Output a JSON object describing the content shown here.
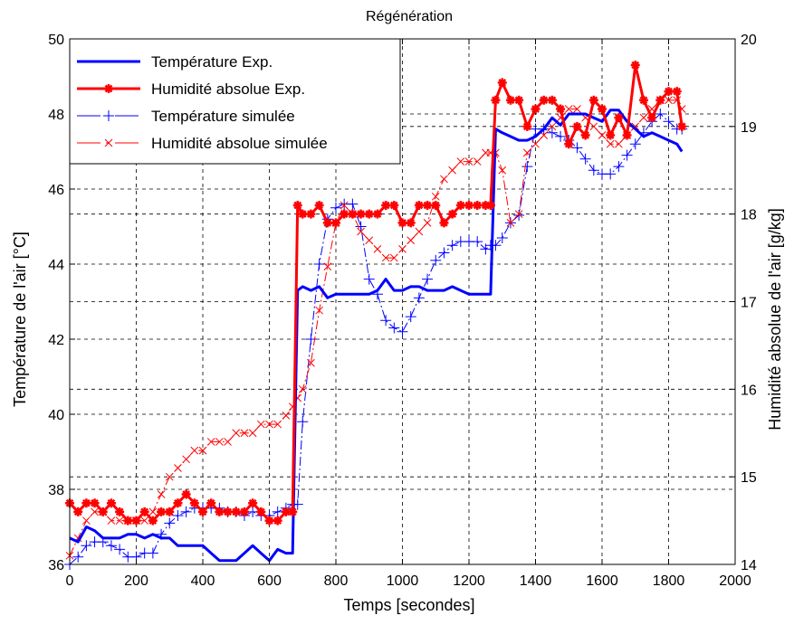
{
  "chart_data": {
    "type": "line",
    "title": "Régénération",
    "xlabel": "Temps [secondes]",
    "ylabel_left": "Température de l'air [°C]",
    "ylabel_right": "Humidité absolue de l'air [g/kg]",
    "xlim": [
      0,
      2000
    ],
    "ylim_left": [
      36,
      50
    ],
    "ylim_right": [
      14,
      20
    ],
    "x_ticks": [
      "0",
      "200",
      "400",
      "600",
      "800",
      "1000",
      "1200",
      "1400",
      "1600",
      "1800",
      "2000"
    ],
    "y_ticks_left": [
      "36",
      "38",
      "40",
      "42",
      "44",
      "46",
      "48",
      "50"
    ],
    "y_ticks_right": [
      "14",
      "15",
      "16",
      "17",
      "18",
      "19",
      "20"
    ],
    "grid": true,
    "legend_position": "top-left",
    "series": [
      {
        "name": "Température Exp.",
        "axis": "left",
        "color": "#0000ff",
        "style": "solid-thick",
        "marker": "none",
        "x": [
          0,
          25,
          50,
          75,
          100,
          125,
          150,
          175,
          200,
          225,
          250,
          275,
          300,
          325,
          350,
          375,
          400,
          425,
          450,
          475,
          500,
          525,
          550,
          575,
          600,
          625,
          650,
          670,
          685,
          700,
          725,
          750,
          775,
          800,
          825,
          850,
          875,
          900,
          925,
          950,
          975,
          1000,
          1025,
          1050,
          1075,
          1100,
          1125,
          1150,
          1175,
          1200,
          1225,
          1250,
          1265,
          1280,
          1300,
          1325,
          1350,
          1375,
          1400,
          1425,
          1450,
          1475,
          1500,
          1525,
          1550,
          1575,
          1600,
          1625,
          1650,
          1675,
          1700,
          1725,
          1750,
          1775,
          1800,
          1825,
          1840
        ],
        "y": [
          36.7,
          36.6,
          37.0,
          36.9,
          36.7,
          36.7,
          36.7,
          36.8,
          36.8,
          36.7,
          36.8,
          36.7,
          36.7,
          36.5,
          36.5,
          36.5,
          36.5,
          36.3,
          36.1,
          36.1,
          36.1,
          36.3,
          36.5,
          36.3,
          36.1,
          36.4,
          36.3,
          36.3,
          43.3,
          43.4,
          43.3,
          43.4,
          43.1,
          43.2,
          43.2,
          43.2,
          43.2,
          43.2,
          43.3,
          43.6,
          43.3,
          43.3,
          43.4,
          43.4,
          43.3,
          43.3,
          43.3,
          43.4,
          43.3,
          43.2,
          43.2,
          43.2,
          43.2,
          47.6,
          47.5,
          47.4,
          47.3,
          47.3,
          47.4,
          47.6,
          47.9,
          47.7,
          48.0,
          48.0,
          48.0,
          47.9,
          47.8,
          48.1,
          48.1,
          47.8,
          47.6,
          47.4,
          47.5,
          47.4,
          47.3,
          47.2,
          47.0
        ]
      },
      {
        "name": "Humidité absolue Exp.",
        "axis": "right",
        "color": "#ff0000",
        "style": "solid-thick",
        "marker": "star",
        "x": [
          0,
          25,
          50,
          75,
          100,
          125,
          150,
          175,
          200,
          225,
          250,
          275,
          300,
          325,
          350,
          375,
          400,
          425,
          450,
          475,
          500,
          525,
          550,
          575,
          600,
          625,
          650,
          670,
          685,
          700,
          725,
          750,
          775,
          800,
          825,
          850,
          875,
          900,
          925,
          950,
          975,
          1000,
          1025,
          1050,
          1075,
          1100,
          1125,
          1150,
          1175,
          1200,
          1225,
          1250,
          1265,
          1280,
          1300,
          1325,
          1350,
          1375,
          1400,
          1425,
          1450,
          1475,
          1500,
          1525,
          1550,
          1575,
          1600,
          1625,
          1650,
          1675,
          1700,
          1725,
          1750,
          1775,
          1800,
          1825,
          1840
        ],
        "y": [
          14.7,
          14.6,
          14.7,
          14.7,
          14.6,
          14.7,
          14.6,
          14.5,
          14.5,
          14.6,
          14.5,
          14.6,
          14.6,
          14.7,
          14.8,
          14.7,
          14.6,
          14.7,
          14.6,
          14.6,
          14.6,
          14.6,
          14.7,
          14.6,
          14.5,
          14.5,
          14.6,
          14.6,
          18.1,
          18.0,
          18.0,
          18.1,
          17.9,
          17.9,
          18.0,
          18.0,
          18.0,
          18.0,
          18.0,
          18.1,
          18.1,
          17.9,
          17.9,
          18.1,
          18.1,
          18.1,
          17.9,
          18.0,
          18.1,
          18.1,
          18.1,
          18.1,
          18.1,
          19.3,
          19.5,
          19.3,
          19.3,
          19.0,
          19.2,
          19.3,
          19.3,
          19.2,
          18.8,
          19.0,
          18.9,
          19.3,
          19.2,
          18.9,
          19.1,
          18.9,
          19.7,
          19.3,
          19.1,
          19.3,
          19.4,
          19.4,
          19.0
        ]
      },
      {
        "name": "Température simulée",
        "axis": "left",
        "color": "#0000ff",
        "style": "dash-dot-thin",
        "marker": "plus",
        "x": [
          0,
          25,
          50,
          75,
          100,
          125,
          150,
          175,
          200,
          225,
          250,
          275,
          300,
          325,
          350,
          375,
          400,
          425,
          450,
          475,
          500,
          525,
          550,
          575,
          600,
          625,
          650,
          670,
          685,
          700,
          725,
          750,
          775,
          800,
          825,
          850,
          875,
          900,
          925,
          950,
          975,
          1000,
          1025,
          1050,
          1075,
          1100,
          1125,
          1150,
          1175,
          1200,
          1225,
          1250,
          1265,
          1280,
          1300,
          1325,
          1350,
          1375,
          1400,
          1425,
          1450,
          1475,
          1500,
          1525,
          1550,
          1575,
          1600,
          1625,
          1650,
          1675,
          1700,
          1725,
          1750,
          1775,
          1800,
          1825,
          1840
        ],
        "y": [
          36.0,
          36.2,
          36.5,
          36.6,
          36.6,
          36.5,
          36.4,
          36.2,
          36.2,
          36.3,
          36.3,
          36.8,
          37.1,
          37.3,
          37.4,
          37.5,
          37.5,
          37.5,
          37.5,
          37.4,
          37.4,
          37.3,
          37.4,
          37.3,
          37.3,
          37.4,
          37.5,
          37.6,
          37.6,
          39.8,
          42.0,
          44.0,
          45.2,
          45.5,
          45.6,
          45.6,
          45.0,
          43.6,
          43.2,
          42.5,
          42.3,
          42.2,
          42.6,
          43.1,
          43.6,
          44.1,
          44.3,
          44.5,
          44.6,
          44.6,
          44.6,
          44.4,
          44.5,
          44.5,
          44.7,
          45.1,
          45.3,
          46.6,
          47.6,
          47.6,
          47.5,
          47.4,
          47.3,
          47.1,
          46.8,
          46.5,
          46.4,
          46.4,
          46.6,
          46.9,
          47.2,
          47.5,
          47.8,
          48.0,
          47.8,
          47.6,
          47.6
        ]
      },
      {
        "name": "Humidité absolue simulée",
        "axis": "right",
        "color": "#ff0000",
        "style": "dash-dot-thin",
        "marker": "x",
        "x": [
          0,
          25,
          50,
          75,
          100,
          125,
          150,
          175,
          200,
          225,
          250,
          275,
          300,
          325,
          350,
          375,
          400,
          425,
          450,
          475,
          500,
          525,
          550,
          575,
          600,
          625,
          650,
          670,
          685,
          700,
          725,
          750,
          775,
          800,
          825,
          850,
          875,
          900,
          925,
          950,
          975,
          1000,
          1025,
          1050,
          1075,
          1100,
          1125,
          1150,
          1175,
          1200,
          1225,
          1250,
          1265,
          1280,
          1300,
          1325,
          1350,
          1375,
          1400,
          1425,
          1450,
          1475,
          1500,
          1525,
          1550,
          1575,
          1600,
          1625,
          1650,
          1675,
          1700,
          1725,
          1750,
          1775,
          1800,
          1825,
          1840
        ],
        "y": [
          14.1,
          14.3,
          14.5,
          14.6,
          14.6,
          14.5,
          14.5,
          14.5,
          14.5,
          14.5,
          14.6,
          14.8,
          15.0,
          15.1,
          15.2,
          15.3,
          15.3,
          15.4,
          15.4,
          15.4,
          15.5,
          15.5,
          15.5,
          15.6,
          15.6,
          15.6,
          15.7,
          15.8,
          15.9,
          16.0,
          16.3,
          16.9,
          17.4,
          17.9,
          18.1,
          18.0,
          17.8,
          17.7,
          17.6,
          17.5,
          17.5,
          17.6,
          17.7,
          17.8,
          17.9,
          18.2,
          18.4,
          18.5,
          18.6,
          18.6,
          18.6,
          18.7,
          18.7,
          18.7,
          18.5,
          17.9,
          18.0,
          18.7,
          18.8,
          18.9,
          19.0,
          19.1,
          19.2,
          19.2,
          19.1,
          19.0,
          18.9,
          18.8,
          18.8,
          18.9,
          19.0,
          19.1,
          19.2,
          19.3,
          19.3,
          19.3,
          19.2
        ]
      }
    ]
  }
}
